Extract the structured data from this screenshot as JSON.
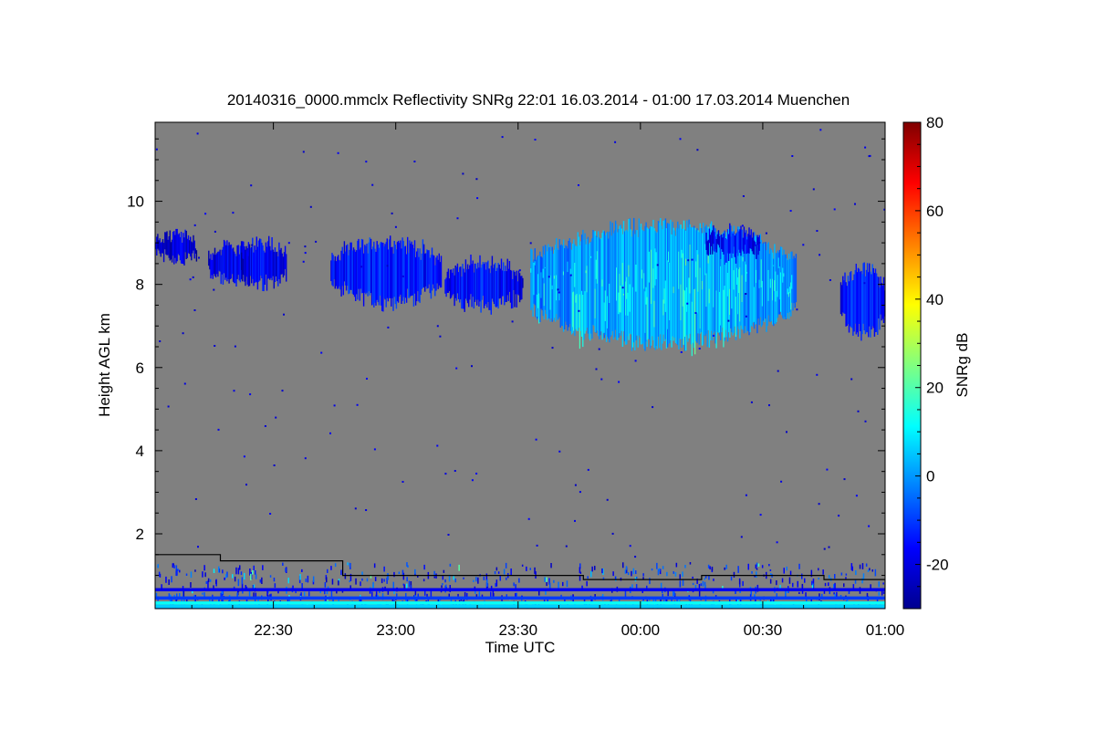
{
  "chart_data": {
    "type": "heatmap",
    "title": "20140316_0000.mmclx Reflectivity SNRg   22:01 16.03.2014 - 01:00 17.03.2014 Muenchen",
    "xlabel": "Time UTC",
    "ylabel": "Height AGL km",
    "colorbar_label": "SNRg dB",
    "x_range_minutes_after_22_00": [
      1,
      180
    ],
    "ylim": [
      0.2,
      11.9
    ],
    "x_ticks": [
      {
        "minute": 30,
        "label": "22:30"
      },
      {
        "minute": 60,
        "label": "23:00"
      },
      {
        "minute": 90,
        "label": "23:30"
      },
      {
        "minute": 120,
        "label": "00:00"
      },
      {
        "minute": 150,
        "label": "00:30"
      },
      {
        "minute": 180,
        "label": "01:00"
      }
    ],
    "y_ticks": [
      {
        "value": 2,
        "label": "2"
      },
      {
        "value": 4,
        "label": "4"
      },
      {
        "value": 6,
        "label": "6"
      },
      {
        "value": 8,
        "label": "8"
      },
      {
        "value": 10,
        "label": "10"
      }
    ],
    "colorbar_range": [
      -30,
      80
    ],
    "colorbar_ticks": [
      {
        "value": -20,
        "label": "-20"
      },
      {
        "value": 0,
        "label": "0"
      },
      {
        "value": 20,
        "label": "20"
      },
      {
        "value": 40,
        "label": "40"
      },
      {
        "value": 60,
        "label": "60"
      },
      {
        "value": 80,
        "label": "80"
      }
    ],
    "no_signal_color": "#808080",
    "colormap": [
      "#00008f",
      "#0000ff",
      "#0080ff",
      "#00ffff",
      "#80ff80",
      "#ffff00",
      "#ff8000",
      "#ff0000",
      "#800000"
    ],
    "cloud_layer": {
      "description_minutes": "upper cloud echoes, SNRg mostly -25 to 5 dB",
      "segments": [
        {
          "start": 1,
          "end": 11,
          "top_km": 9.2,
          "base_km": 8.6,
          "snr_db": -20
        },
        {
          "start": 14,
          "end": 26,
          "top_km": 8.9,
          "base_km": 8.1,
          "snr_db": -18
        },
        {
          "start": 22,
          "end": 33,
          "top_km": 9.0,
          "base_km": 8.0,
          "snr_db": -17
        },
        {
          "start": 44,
          "end": 71,
          "top_km": 9.0,
          "base_km": 7.6,
          "snr_db": -12
        },
        {
          "start": 72,
          "end": 91,
          "top_km": 8.5,
          "base_km": 7.5,
          "snr_db": -14
        },
        {
          "start": 93,
          "end": 158,
          "top_km": 9.4,
          "base_km": 6.6,
          "snr_db": 2
        },
        {
          "start": 136,
          "end": 149,
          "top_km": 9.3,
          "base_km": 8.7,
          "snr_db": -14
        },
        {
          "start": 169,
          "end": 180,
          "top_km": 8.4,
          "base_km": 6.8,
          "snr_db": -12
        }
      ]
    },
    "boundary_line_km": [
      {
        "start": 1,
        "end": 17,
        "height_km": 1.5
      },
      {
        "start": 17,
        "end": 47,
        "height_km": 1.35
      },
      {
        "start": 47,
        "end": 106,
        "height_km": 1.0
      },
      {
        "start": 106,
        "end": 135,
        "height_km": 0.9
      },
      {
        "start": 135,
        "end": 165,
        "height_km": 1.0
      },
      {
        "start": 165,
        "end": 180,
        "height_km": 0.9
      }
    ],
    "near_surface_bands_km": [
      {
        "height_km": 0.65,
        "snr_db": -18
      },
      {
        "height_km": 0.45,
        "snr_db": -10
      },
      {
        "height_km": 0.33,
        "snr_db": 12
      },
      {
        "height_km": 0.25,
        "snr_db": 6
      }
    ],
    "grid": false,
    "legend": "colorbar-right"
  }
}
